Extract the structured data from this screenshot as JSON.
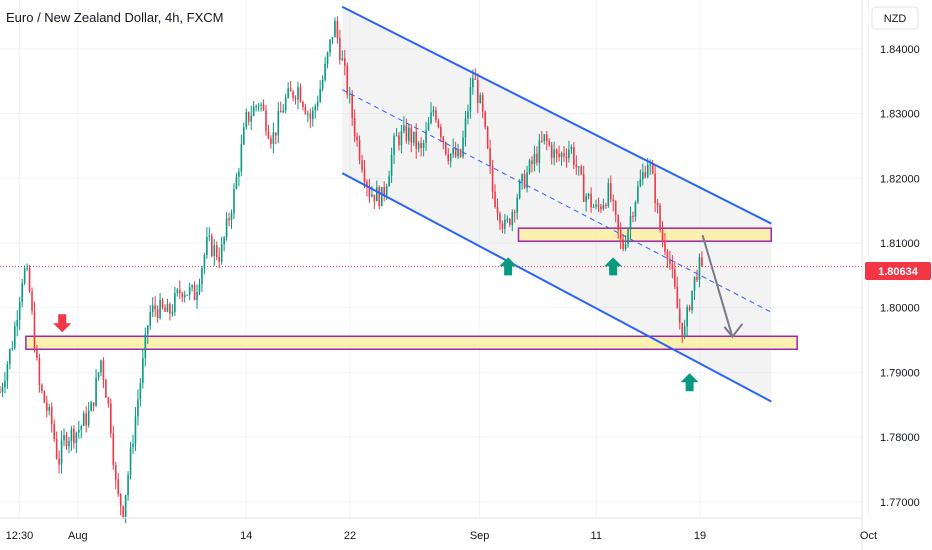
{
  "chart_data": {
    "type": "candlestick",
    "title": "Euro / New Zealand Dollar, 4h, FXCM",
    "currency": "NZD",
    "last_price": "1.80634",
    "y_range": [
      1.7675,
      1.846
    ],
    "y_ticks": [
      "1.84000",
      "1.83000",
      "1.82000",
      "1.81000",
      "1.80000",
      "1.79000",
      "1.78000",
      "1.77000"
    ],
    "y_tick_values": [
      1.84,
      1.83,
      1.82,
      1.81,
      1.8,
      1.79,
      1.78,
      1.77
    ],
    "x_ticks": [
      "12:30",
      "Aug",
      "14",
      "22",
      "Sep",
      "11",
      "19",
      "Oct"
    ],
    "x_tick_days": [
      -4.5,
      0,
      13,
      21,
      31,
      40,
      48,
      61
    ],
    "x_range_days": [
      -6,
      60.5
    ],
    "colors": {
      "up": "#089981",
      "down": "#f23645",
      "channel": "#2962ff",
      "zone_fill": "#fbeea0",
      "zone_border": "#9c27b0",
      "last_price_badge": "#f23645",
      "arrow_up": "#089981",
      "arrow_down": "#f23645",
      "projection_arrow": "#787b86"
    },
    "price_path": [
      [
        "-6",
        1.787
      ],
      [
        "-5",
        1.795
      ],
      [
        "-4.2",
        1.806
      ],
      [
        "-3.8",
        1.804
      ],
      [
        "-3",
        1.788
      ],
      [
        "-2",
        1.782
      ],
      [
        "-1.5",
        1.776
      ],
      [
        "-1",
        1.78
      ],
      [
        "0",
        1.781
      ],
      [
        "1",
        1.784
      ],
      [
        "1.8",
        1.792
      ],
      [
        "2.5",
        1.783
      ],
      [
        "3",
        1.771
      ],
      [
        "3.5",
        1.769
      ],
      [
        "4",
        1.776
      ],
      [
        "4.5",
        1.784
      ],
      [
        "5",
        1.791
      ],
      [
        "5.5",
        1.799
      ],
      [
        "6",
        1.8
      ],
      [
        "7",
        1.799
      ],
      [
        "8",
        1.803
      ],
      [
        "9",
        1.802
      ],
      [
        "10",
        1.81
      ],
      [
        "11",
        1.808
      ],
      [
        "12",
        1.817
      ],
      [
        "13",
        1.829
      ],
      [
        "14",
        1.832
      ],
      [
        "15",
        1.826
      ],
      [
        "16",
        1.832
      ],
      [
        "17",
        1.834
      ],
      [
        "18",
        1.829
      ],
      [
        "19",
        1.836
      ],
      [
        "19.8",
        1.844
      ],
      [
        "20.5",
        1.837
      ],
      [
        "21.5",
        1.826
      ],
      [
        "22.5",
        1.818
      ],
      [
        "23.5",
        1.817
      ],
      [
        "24.5",
        1.826
      ],
      [
        "25.5",
        1.827
      ],
      [
        "26.5",
        1.824
      ],
      [
        "27.5",
        1.831
      ],
      [
        "28.5",
        1.824
      ],
      [
        "29.5",
        1.823
      ],
      [
        "30.5",
        1.836
      ],
      [
        "31.2",
        1.83
      ],
      [
        "32",
        1.818
      ],
      [
        "33",
        1.812
      ],
      [
        "34",
        1.818
      ],
      [
        "35",
        1.822
      ],
      [
        "36",
        1.826
      ],
      [
        "37",
        1.823
      ],
      [
        "38",
        1.825
      ],
      [
        "39",
        1.818
      ],
      [
        "40",
        1.815
      ],
      [
        "41",
        1.818
      ],
      [
        "41.5",
        1.813
      ],
      [
        "42",
        1.809
      ],
      [
        "43",
        1.817
      ],
      [
        "44",
        1.823
      ],
      [
        "44.5",
        1.818
      ],
      [
        "45",
        1.811
      ],
      [
        "45.5",
        1.809
      ],
      [
        "46",
        1.803
      ],
      [
        "46.4",
        1.798
      ],
      [
        "46.8",
        1.796
      ],
      [
        "47.2",
        1.801
      ],
      [
        "47.8",
        1.806
      ],
      [
        "48.3",
        1.8068
      ]
    ],
    "channel_upper": [
      [
        20.4,
        1.8465
      ],
      [
        53.5,
        1.813
      ]
    ],
    "channel_lower": [
      [
        20.4,
        1.8208
      ],
      [
        53.5,
        1.7855
      ]
    ],
    "channel_mid": [
      [
        20.4,
        1.8337
      ],
      [
        53.5,
        1.7993
      ]
    ],
    "resistance_zone": [
      [
        34,
        1.8112
      ],
      [
        53.5,
        1.81
      ]
    ],
    "support_zone": [
      [
        -4,
        1.7945
      ],
      [
        55.5,
        1.7928
      ]
    ],
    "projection_arrow": [
      [
        48.2,
        1.8112
      ],
      [
        50.5,
        1.7955
      ]
    ],
    "green_arrows_days": [
      33.2,
      41.3,
      47.2
    ],
    "red_arrow_day": -1.2
  }
}
